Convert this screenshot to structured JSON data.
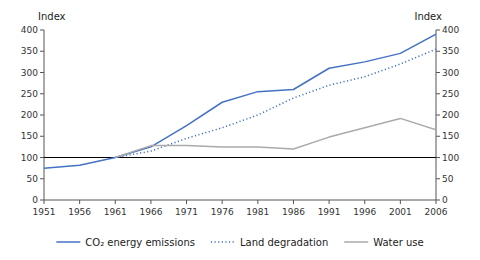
{
  "chart_data": {
    "type": "line",
    "x": [
      1951,
      1956,
      1961,
      1966,
      1971,
      1976,
      1981,
      1986,
      1991,
      1996,
      2001,
      2006
    ],
    "series": [
      {
        "name": "CO₂ energy emissions",
        "color": "#4472C4",
        "line_style": "solid",
        "values": [
          75,
          82,
          100,
          125,
          175,
          230,
          255,
          260,
          310,
          325,
          345,
          390
        ]
      },
      {
        "name": "Land degradation",
        "color": "#4472C4",
        "line_style": "dotted",
        "values": [
          null,
          null,
          100,
          115,
          145,
          170,
          200,
          240,
          270,
          290,
          320,
          355
        ]
      },
      {
        "name": "Water use",
        "color": "#aaaaaa",
        "line_style": "solid",
        "values": [
          null,
          null,
          100,
          128,
          128,
          125,
          125,
          120,
          148,
          170,
          192,
          165
        ]
      }
    ],
    "reference_line": {
      "y": 100,
      "color": "#000000"
    },
    "y_label": "Index",
    "y2_label": "Index",
    "xlim": [
      1951,
      2006
    ],
    "xticks": [
      1951,
      1956,
      1961,
      1966,
      1971,
      1976,
      1981,
      1986,
      1991,
      1996,
      2001,
      2006
    ],
    "ylim": [
      0,
      400
    ],
    "yticks": [
      0,
      50,
      100,
      150,
      200,
      250,
      300,
      350,
      400
    ],
    "y2lim": [
      0,
      400
    ],
    "y2ticks": [
      0,
      50,
      100,
      150,
      200,
      250,
      300,
      350,
      400
    ],
    "grid": false,
    "legend": "bottom"
  }
}
